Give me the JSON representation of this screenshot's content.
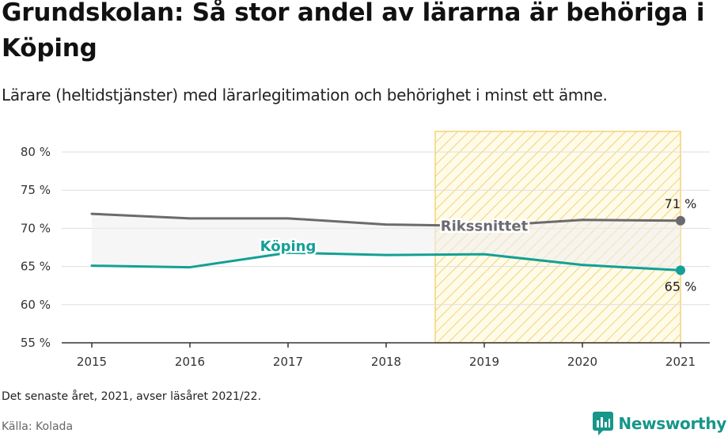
{
  "title": "Grundskolan: Så stor andel av lärarna är behöriga i Köping",
  "subtitle": "Lärare (heltidstjänster) med lärarlegitimation och behörighet i minst ett ämne.",
  "note": "Det senaste året, 2021, avser läsåret 2021/22.",
  "source": "Källa: Kolada",
  "brand": {
    "name": "Newsworthy",
    "icon": "newsworthy-logo-icon",
    "color": "#17968a"
  },
  "chart_data": {
    "type": "line",
    "x": [
      2015,
      2016,
      2017,
      2018,
      2019,
      2020,
      2021
    ],
    "x_tick_labels": [
      "2015",
      "2016",
      "2017",
      "2018",
      "2019",
      "2020",
      "2021"
    ],
    "ylim": [
      55,
      80
    ],
    "y_ticks": [
      55,
      60,
      65,
      70,
      75,
      80
    ],
    "y_tick_labels": [
      "55 %",
      "60 %",
      "65 %",
      "70 %",
      "75 %",
      "80 %"
    ],
    "grid": true,
    "highlight_range": [
      2018.5,
      2021
    ],
    "series": [
      {
        "name": "Rikssnittet",
        "color": "#6b6a6f",
        "values": [
          71.9,
          71.3,
          71.3,
          70.5,
          70.3,
          71.1,
          71.0
        ],
        "end_label": "71 %"
      },
      {
        "name": "Köping",
        "color": "#13a096",
        "values": [
          65.1,
          64.9,
          66.8,
          66.5,
          66.6,
          65.2,
          64.5
        ],
        "end_label": "65 %"
      }
    ]
  }
}
